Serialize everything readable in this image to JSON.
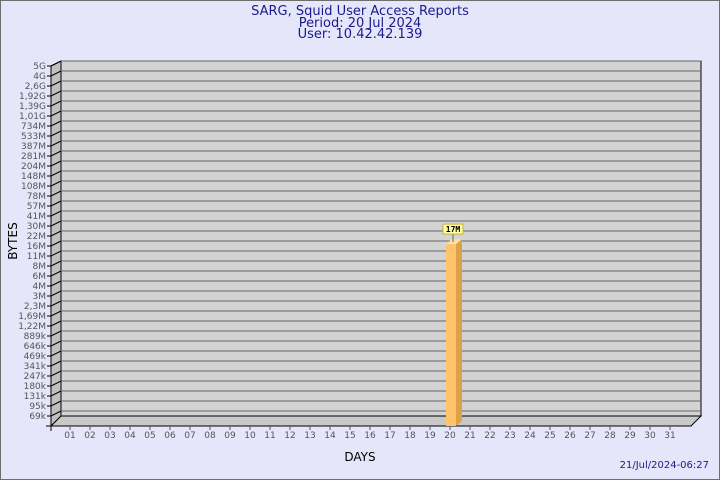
{
  "header": {
    "title": "SARG, Squid User Access Reports",
    "period": "Period: 20 Jul 2024",
    "user": "User: 10.42.42.139"
  },
  "timestamp": "21/Jul/2024-06:27",
  "colors": {
    "background": "#e6e6fa",
    "plot": "#d3d3d3",
    "bar_front": "#ffc46b",
    "bar_side": "#dca24a",
    "bar_top": "#ffe0a0",
    "label_box": "#ffffa0",
    "title": "#1a1a8c"
  },
  "chart_data": {
    "type": "bar",
    "style": "3d",
    "xlabel": "DAYS",
    "ylabel": "BYTES",
    "categories": [
      "01",
      "02",
      "03",
      "04",
      "05",
      "06",
      "07",
      "08",
      "09",
      "10",
      "11",
      "12",
      "13",
      "14",
      "15",
      "16",
      "17",
      "18",
      "19",
      "20",
      "21",
      "22",
      "23",
      "24",
      "25",
      "26",
      "27",
      "28",
      "29",
      "30",
      "31"
    ],
    "y_ticks": [
      "5G",
      "4G",
      "2,6G",
      "1,92G",
      "1,39G",
      "1,01G",
      "734M",
      "533M",
      "387M",
      "281M",
      "204M",
      "148M",
      "108M",
      "78M",
      "57M",
      "41M",
      "30M",
      "22M",
      "16M",
      "11M",
      "8M",
      "6M",
      "4M",
      "3M",
      "2,3M",
      "1,69M",
      "1,22M",
      "889k",
      "646k",
      "469k",
      "341k",
      "247k",
      "180k",
      "131k",
      "95k",
      "69k"
    ],
    "y_scale": "log",
    "grid": true,
    "bars": [
      {
        "category": "20",
        "value": 17000000,
        "label": "17M"
      }
    ]
  }
}
